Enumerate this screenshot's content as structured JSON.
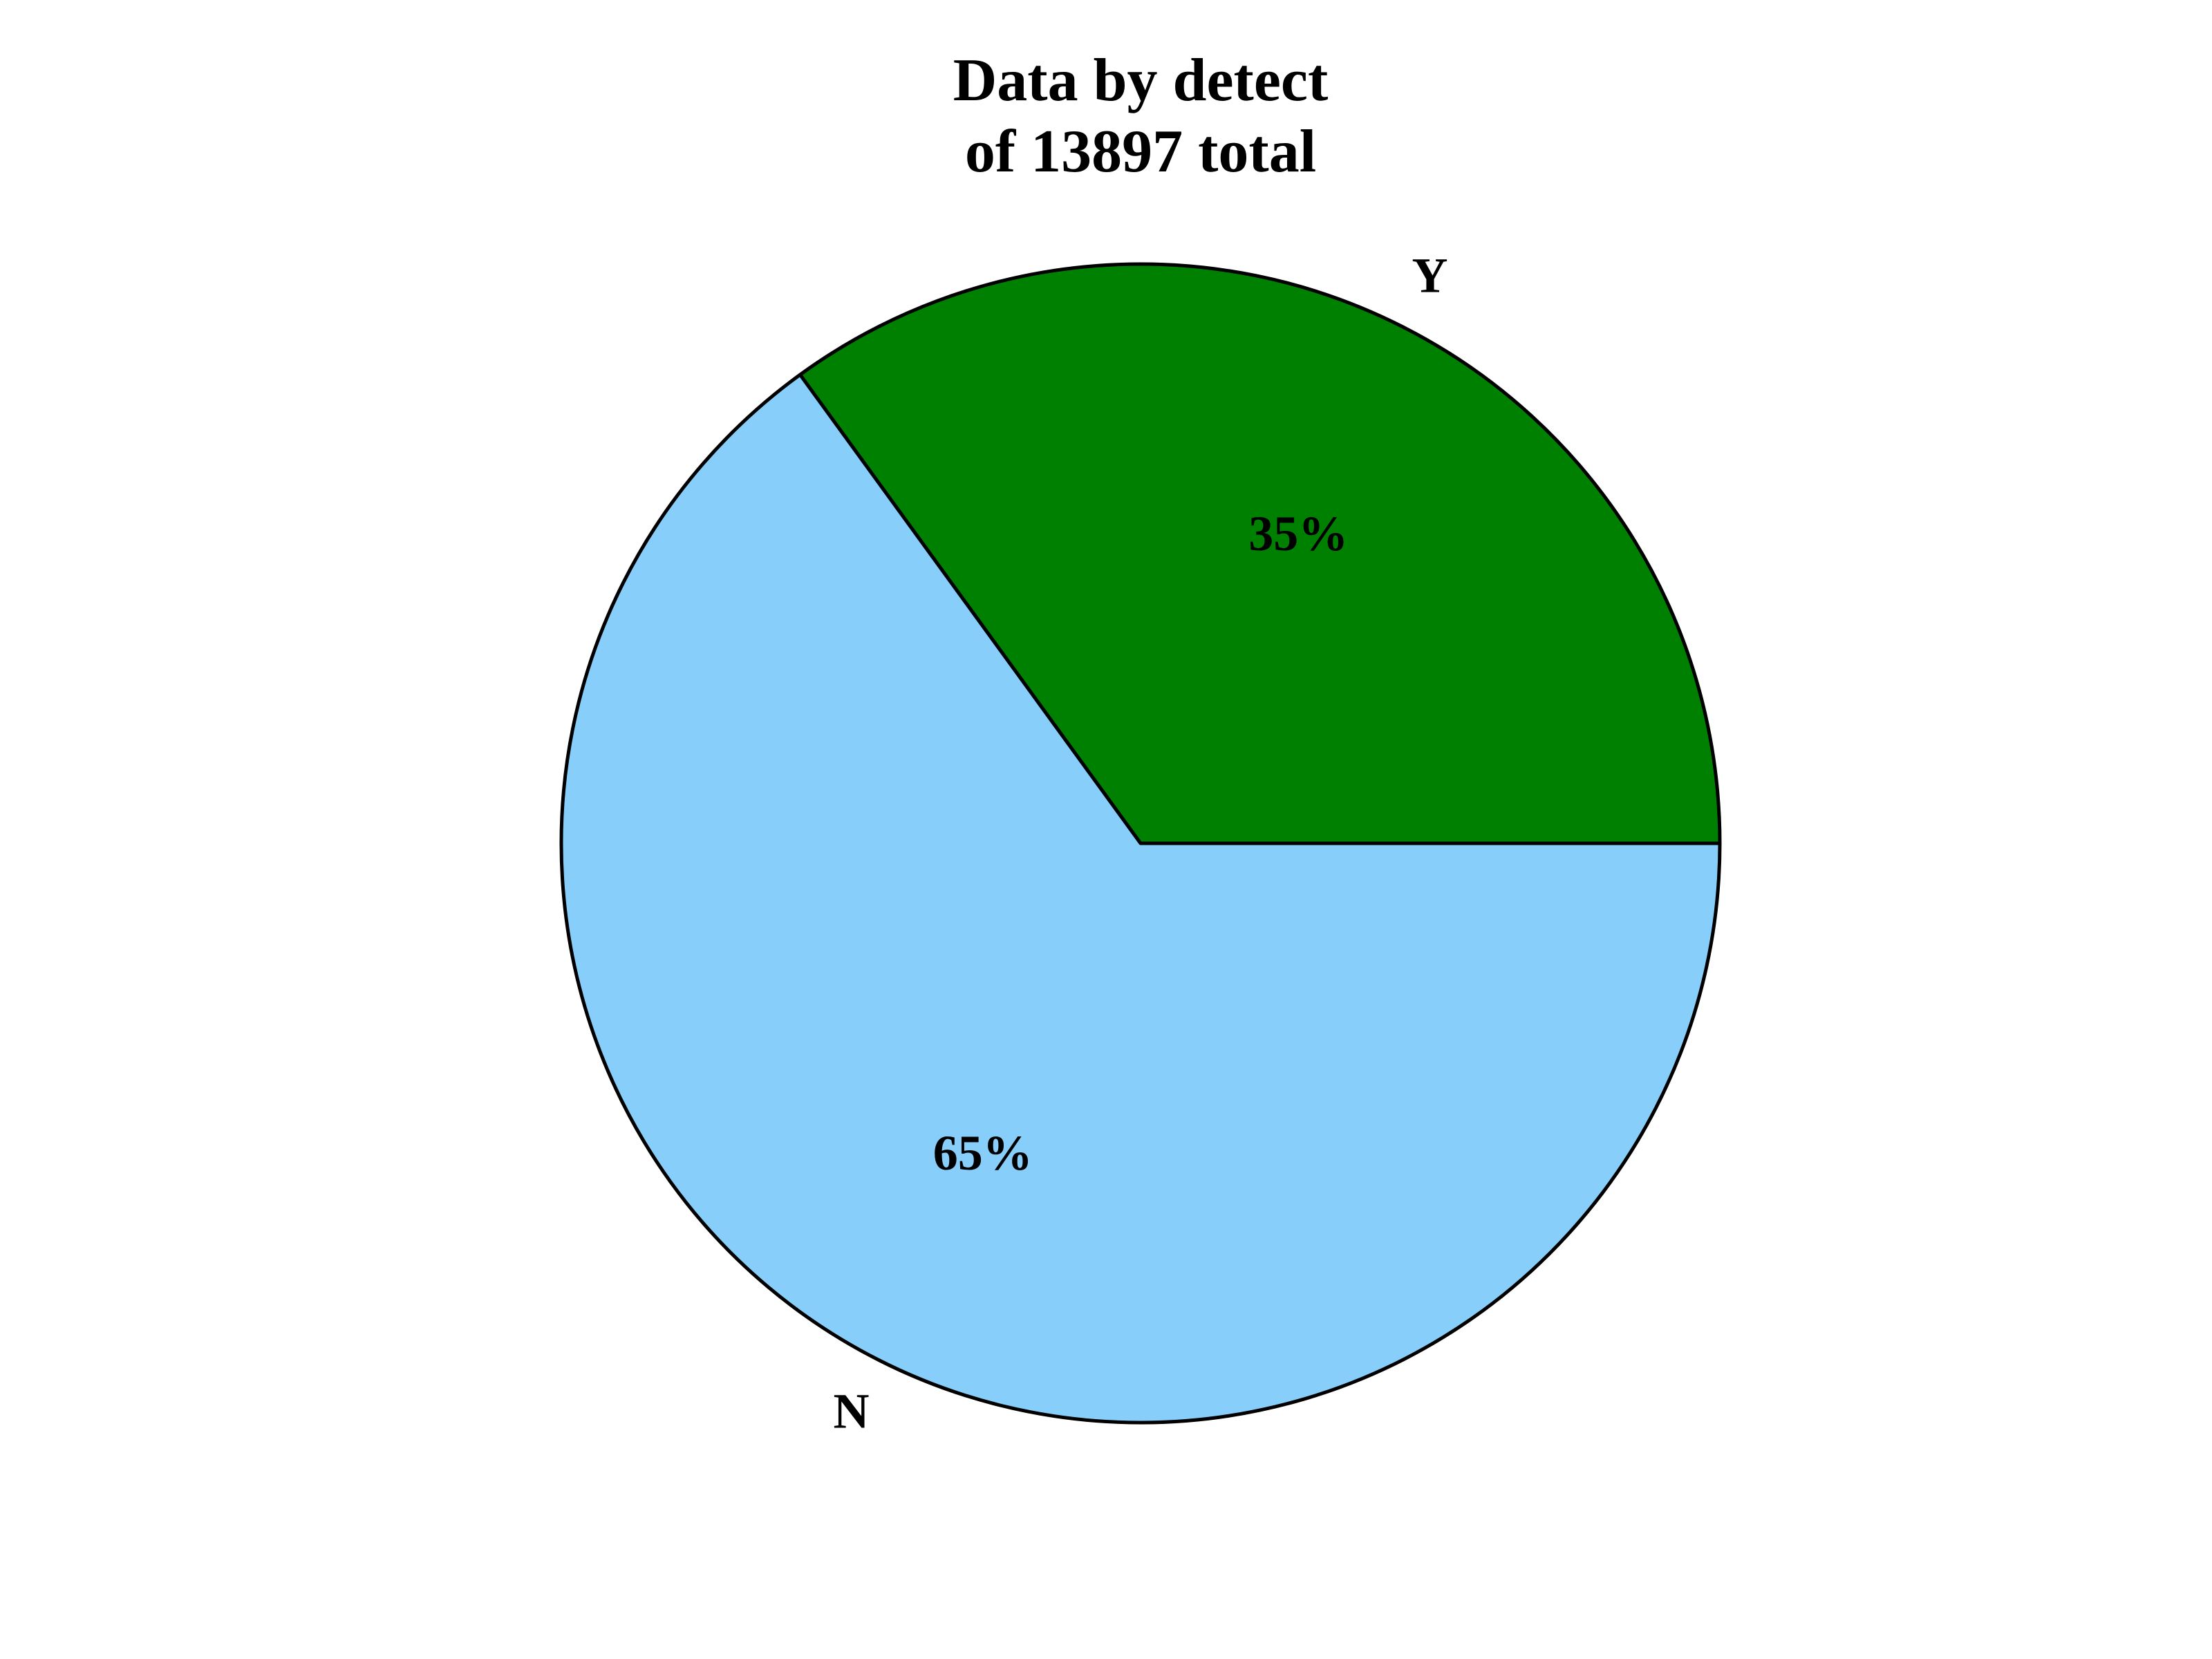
{
  "chart_data": {
    "type": "pie",
    "title": [
      "Data by detect",
      "of 13897 total"
    ],
    "categories": [
      "Y",
      "N"
    ],
    "values": [
      35,
      65
    ],
    "value_labels": [
      "35%",
      "65%"
    ],
    "colors": [
      "#008000",
      "#87CEFA"
    ],
    "start_angle_deg": 0,
    "direction": "counterclockwise",
    "edge_color": "#000000",
    "legend": "none"
  }
}
